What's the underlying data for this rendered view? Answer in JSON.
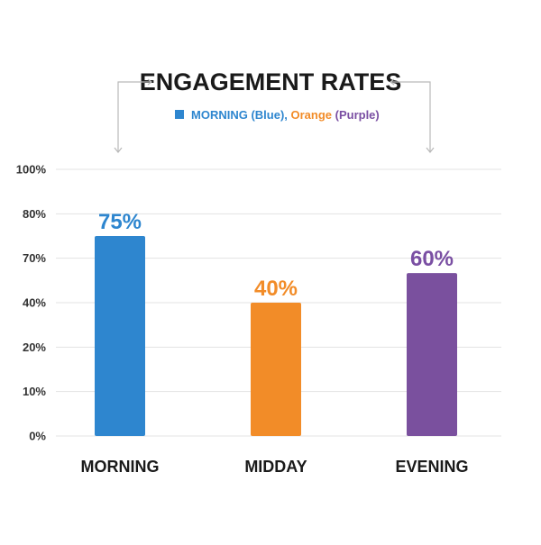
{
  "chart_data": {
    "type": "bar",
    "title": "ENGAGEMENT RATES",
    "legend": {
      "placement": "top-center",
      "parts": [
        {
          "text": "MORNING (Blue), ",
          "color": "#2e86cf"
        },
        {
          "text": "Orange ",
          "color": "#f28c28"
        },
        {
          "text": "(Purple)",
          "color": "#7a4fa3"
        }
      ],
      "swatch_color": "#2e86cf"
    },
    "categories": [
      "MORNING",
      "MIDDAY",
      "EVENING"
    ],
    "values": [
      75,
      40,
      60
    ],
    "value_labels": [
      "75%",
      "40%",
      "60%"
    ],
    "colors": [
      "#2e86cf",
      "#f28c28",
      "#7a509e"
    ],
    "label_colors": [
      "#2e86cf",
      "#f28c28",
      "#7a4fa3"
    ],
    "y_ticks": [
      "100%",
      "80%",
      "70%",
      "40%",
      "20%",
      "10%",
      "0%"
    ],
    "grid": true,
    "xlabel": "",
    "ylabel": ""
  }
}
